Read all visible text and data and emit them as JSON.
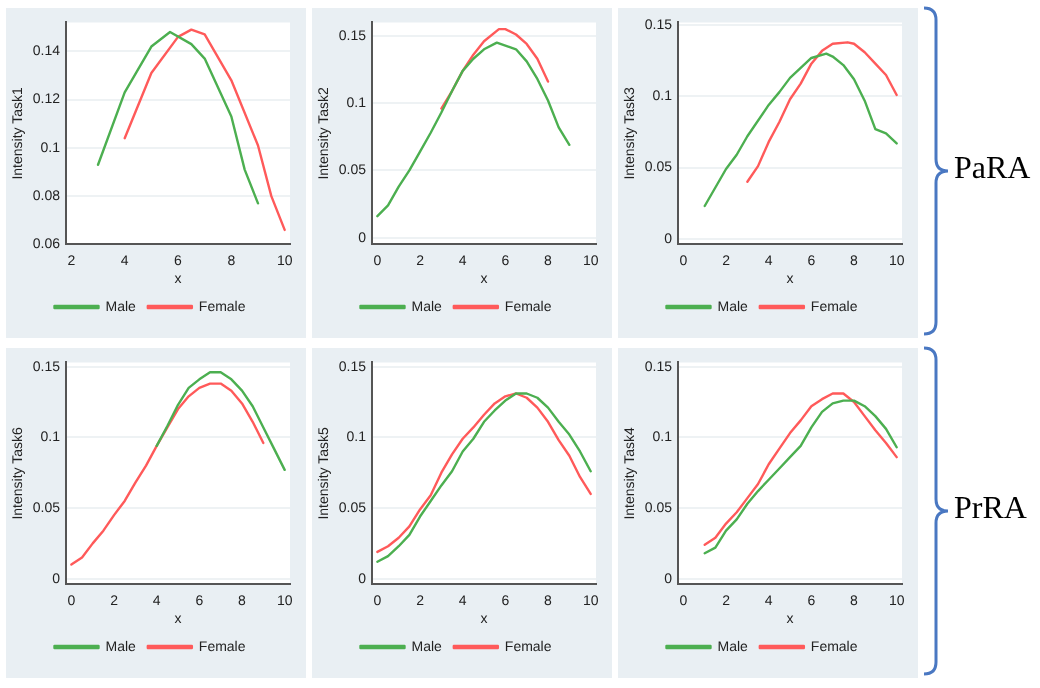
{
  "chart_data": [
    {
      "type": "line",
      "ylabel": "Intensity Task1",
      "xlabel": "x",
      "xlim": [
        1.8,
        10.2
      ],
      "xticks": [
        2,
        4,
        6,
        8,
        10
      ],
      "ylim": [
        0.06,
        0.152
      ],
      "yticks": [
        0.06,
        0.08,
        0.1,
        0.12,
        0.14
      ],
      "grid": "y",
      "legend": "bottom",
      "marker": "none",
      "line_style": "solid",
      "series": [
        {
          "name": "Male",
          "color": "#4caf50",
          "x": [
            3,
            4,
            5,
            5.7,
            6.5,
            7,
            8,
            8.5,
            9
          ],
          "values": [
            0.093,
            0.123,
            0.142,
            0.148,
            0.143,
            0.137,
            0.113,
            0.091,
            0.077
          ]
        },
        {
          "name": "Female",
          "color": "#ff5a5a",
          "x": [
            4,
            5,
            6,
            6.5,
            7,
            8,
            9,
            9.5,
            10
          ],
          "values": [
            0.104,
            0.131,
            0.146,
            0.149,
            0.147,
            0.128,
            0.101,
            0.08,
            0.066
          ]
        }
      ]
    },
    {
      "type": "line",
      "ylabel": "Intensity Task2",
      "xlabel": "x",
      "xlim": [
        -0.25,
        10.25
      ],
      "xticks": [
        0,
        2,
        4,
        6,
        8,
        10
      ],
      "ylim": [
        -0.005,
        0.16
      ],
      "yticks": [
        0,
        0.05,
        0.1,
        0.15
      ],
      "grid": "y",
      "legend": "bottom",
      "marker": "none",
      "line_style": "solid",
      "annotations": [
        "PaRA"
      ],
      "series": [
        {
          "name": "Male",
          "color": "#4caf50",
          "x": [
            0,
            0.5,
            1,
            1.5,
            2,
            2.5,
            3,
            3.5,
            4,
            4.5,
            5,
            5.6,
            6.5,
            7,
            7.5,
            8,
            8.5,
            9
          ],
          "values": [
            0.016,
            0.024,
            0.038,
            0.05,
            0.064,
            0.078,
            0.093,
            0.109,
            0.124,
            0.133,
            0.14,
            0.145,
            0.14,
            0.131,
            0.118,
            0.102,
            0.082,
            0.069
          ]
        },
        {
          "name": "Female",
          "color": "#ff5a5a",
          "x": [
            3,
            3.5,
            4,
            4.5,
            5,
            5.7,
            6,
            6.5,
            7,
            7.5,
            8
          ],
          "values": [
            0.096,
            0.109,
            0.124,
            0.136,
            0.146,
            0.155,
            0.155,
            0.151,
            0.144,
            0.133,
            0.116
          ]
        }
      ]
    },
    {
      "type": "line",
      "ylabel": "Intensity Task3",
      "xlabel": "x",
      "xlim": [
        -0.25,
        10.25
      ],
      "xticks": [
        0,
        2,
        4,
        6,
        8,
        10
      ],
      "ylim": [
        -0.004,
        0.152
      ],
      "yticks": [
        0,
        0.05,
        0.1,
        0.15
      ],
      "grid": "y",
      "legend": "bottom",
      "marker": "none",
      "line_style": "solid",
      "series": [
        {
          "name": "Male",
          "color": "#4caf50",
          "x": [
            1,
            2,
            2.5,
            3,
            4,
            4.5,
            5,
            5.5,
            6,
            6.7,
            7,
            7.5,
            8,
            8.5,
            9,
            9.5,
            10
          ],
          "values": [
            0.023,
            0.049,
            0.059,
            0.072,
            0.094,
            0.103,
            0.113,
            0.12,
            0.127,
            0.13,
            0.128,
            0.122,
            0.112,
            0.097,
            0.077,
            0.074,
            0.067
          ]
        },
        {
          "name": "Female",
          "color": "#ff5a5a",
          "x": [
            3,
            3.5,
            4,
            4.5,
            5,
            5.5,
            6,
            6.5,
            7,
            7.7,
            8,
            8.5,
            9,
            9.5,
            10
          ],
          "values": [
            0.04,
            0.051,
            0.068,
            0.082,
            0.098,
            0.109,
            0.123,
            0.132,
            0.137,
            0.138,
            0.137,
            0.131,
            0.123,
            0.115,
            0.101
          ]
        }
      ]
    },
    {
      "type": "line",
      "ylabel": "Intensity Task6",
      "xlabel": "x",
      "xlim": [
        -0.25,
        10.25
      ],
      "xticks": [
        0,
        2,
        4,
        6,
        8,
        10
      ],
      "ylim": [
        -0.004,
        0.153
      ],
      "yticks": [
        0,
        0.05,
        0.1,
        0.15
      ],
      "grid": "y",
      "legend": "bottom",
      "marker": "none",
      "line_style": "solid",
      "series": [
        {
          "name": "Male",
          "color": "#4caf50",
          "x": [
            4,
            4.5,
            5,
            5.5,
            6,
            6.5,
            7,
            7.5,
            8,
            8.5,
            9,
            9.5,
            10
          ],
          "values": [
            0.094,
            0.108,
            0.123,
            0.135,
            0.141,
            0.146,
            0.146,
            0.141,
            0.133,
            0.122,
            0.107,
            0.092,
            0.077
          ]
        },
        {
          "name": "Female",
          "color": "#ff5a5a",
          "x": [
            0,
            0.5,
            1,
            1.5,
            2,
            2.5,
            3,
            3.5,
            4,
            4.5,
            5,
            5.5,
            6,
            6.5,
            7,
            7.5,
            8,
            8.5,
            9
          ],
          "values": [
            0.01,
            0.015,
            0.025,
            0.034,
            0.045,
            0.055,
            0.068,
            0.08,
            0.094,
            0.107,
            0.12,
            0.129,
            0.135,
            0.138,
            0.138,
            0.133,
            0.124,
            0.111,
            0.096
          ]
        }
      ]
    },
    {
      "type": "line",
      "ylabel": "Intensity Task5",
      "xlabel": "x",
      "xlim": [
        -0.25,
        10.25
      ],
      "xticks": [
        0,
        2,
        4,
        6,
        8,
        10
      ],
      "ylim": [
        -0.004,
        0.153
      ],
      "yticks": [
        0,
        0.05,
        0.1,
        0.15
      ],
      "grid": "y",
      "legend": "bottom",
      "marker": "none",
      "line_style": "solid",
      "annotations": [
        "PrRA"
      ],
      "series": [
        {
          "name": "Male",
          "color": "#4caf50",
          "x": [
            0,
            0.5,
            1,
            1.5,
            2,
            2.5,
            3,
            3.5,
            4,
            4.5,
            5,
            5.5,
            6,
            6.5,
            7,
            7.5,
            8,
            8.5,
            9,
            9.5,
            10
          ],
          "values": [
            0.012,
            0.016,
            0.023,
            0.031,
            0.044,
            0.055,
            0.066,
            0.076,
            0.09,
            0.099,
            0.111,
            0.119,
            0.126,
            0.131,
            0.131,
            0.128,
            0.121,
            0.111,
            0.102,
            0.09,
            0.076
          ]
        },
        {
          "name": "Female",
          "color": "#ff5a5a",
          "x": [
            0,
            0.5,
            1,
            1.5,
            2,
            2.5,
            3,
            3.5,
            4,
            4.5,
            5,
            5.5,
            6,
            6.5,
            7,
            7.5,
            8,
            8.5,
            9,
            9.5,
            10
          ],
          "values": [
            0.019,
            0.023,
            0.029,
            0.037,
            0.049,
            0.059,
            0.075,
            0.088,
            0.099,
            0.107,
            0.116,
            0.124,
            0.129,
            0.131,
            0.128,
            0.121,
            0.111,
            0.098,
            0.087,
            0.072,
            0.06
          ]
        }
      ]
    },
    {
      "type": "line",
      "ylabel": "Intensity Task4",
      "xlabel": "x",
      "xlim": [
        -0.25,
        10.25
      ],
      "xticks": [
        0,
        2,
        4,
        6,
        8,
        10
      ],
      "ylim": [
        -0.004,
        0.153
      ],
      "yticks": [
        0,
        0.05,
        0.1,
        0.15
      ],
      "grid": "y",
      "legend": "bottom",
      "marker": "none",
      "line_style": "solid",
      "series": [
        {
          "name": "Male",
          "color": "#4caf50",
          "x": [
            1,
            1.5,
            2,
            2.5,
            3,
            3.5,
            4,
            4.5,
            5,
            5.5,
            6,
            6.5,
            7,
            7.5,
            8,
            8.5,
            9,
            9.5,
            10
          ],
          "values": [
            0.018,
            0.022,
            0.034,
            0.042,
            0.053,
            0.062,
            0.07,
            0.078,
            0.086,
            0.094,
            0.107,
            0.118,
            0.124,
            0.126,
            0.126,
            0.122,
            0.115,
            0.106,
            0.093
          ]
        },
        {
          "name": "Female",
          "color": "#ff5a5a",
          "x": [
            1,
            1.5,
            2,
            2.5,
            3,
            3.5,
            4,
            4.5,
            5,
            5.5,
            6,
            6.5,
            7,
            7.5,
            8,
            8.5,
            9,
            9.5,
            10
          ],
          "values": [
            0.024,
            0.029,
            0.039,
            0.047,
            0.057,
            0.067,
            0.081,
            0.092,
            0.103,
            0.112,
            0.122,
            0.127,
            0.131,
            0.131,
            0.125,
            0.115,
            0.105,
            0.096,
            0.086
          ]
        }
      ]
    }
  ]
}
